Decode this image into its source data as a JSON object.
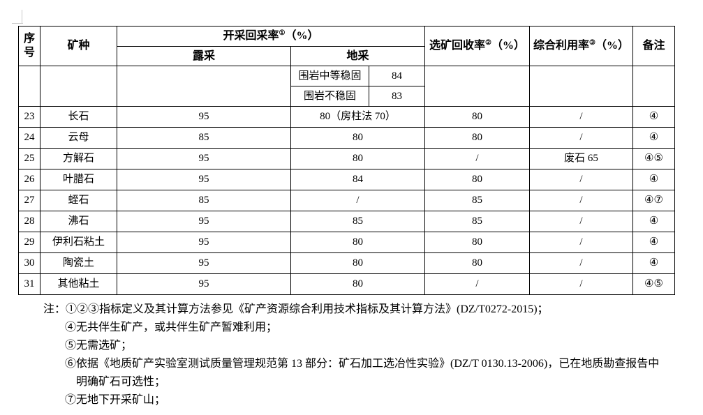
{
  "table": {
    "header": {
      "serial": "序号",
      "mineral": "矿种",
      "mining_rate": "开采回采率",
      "mining_rate_sup": "①",
      "mining_rate_unit": "（%）",
      "open_pit": "露采",
      "underground": "地采",
      "dressing_recovery": "选矿回收率",
      "dressing_recovery_sup": "②",
      "dressing_recovery_unit": "（%）",
      "comprehensive_utilization": "综合利用率",
      "comprehensive_utilization_sup": "③",
      "comprehensive_utilization_unit": "（%）",
      "remark": "备注"
    },
    "stability_rows": [
      {
        "label": "围岩中等稳固",
        "value": "84"
      },
      {
        "label": "围岩不稳固",
        "value": "83"
      }
    ],
    "rows": [
      {
        "no": "23",
        "mineral": "长石",
        "open": "95",
        "underground": "80（房柱法 70）",
        "dressing": "80",
        "comprehensive": "/",
        "remark": "④"
      },
      {
        "no": "24",
        "mineral": "云母",
        "open": "85",
        "underground": "80",
        "dressing": "80",
        "comprehensive": "/",
        "remark": "④"
      },
      {
        "no": "25",
        "mineral": "方解石",
        "open": "95",
        "underground": "80",
        "dressing": "/",
        "comprehensive": "废石 65",
        "remark": "④⑤"
      },
      {
        "no": "26",
        "mineral": "叶腊石",
        "open": "95",
        "underground": "84",
        "dressing": "80",
        "comprehensive": "/",
        "remark": "④"
      },
      {
        "no": "27",
        "mineral": "蛭石",
        "open": "85",
        "underground": "/",
        "dressing": "85",
        "comprehensive": "/",
        "remark": "④⑦"
      },
      {
        "no": "28",
        "mineral": "沸石",
        "open": "95",
        "underground": "85",
        "dressing": "85",
        "comprehensive": "/",
        "remark": "④"
      },
      {
        "no": "29",
        "mineral": "伊利石粘土",
        "open": "95",
        "underground": "80",
        "dressing": "80",
        "comprehensive": "/",
        "remark": "④"
      },
      {
        "no": "30",
        "mineral": "陶瓷土",
        "open": "95",
        "underground": "80",
        "dressing": "80",
        "comprehensive": "/",
        "remark": "④"
      },
      {
        "no": "31",
        "mineral": "其他粘土",
        "open": "95",
        "underground": "80",
        "dressing": "/",
        "comprehensive": "/",
        "remark": "④⑤"
      }
    ]
  },
  "notes": {
    "prefix": "注：",
    "lines": [
      {
        "indent": "first",
        "text": "①②③指标定义及其计算方法参见《矿产资源综合利用技术指标及其计算方法》(DZ/T0272-2015)；"
      },
      {
        "indent": "item",
        "text": "④无共伴生矿产，或共伴生矿产暂难利用；"
      },
      {
        "indent": "item",
        "text": "⑤无需选矿；"
      },
      {
        "indent": "item",
        "text": "⑥依据《地质矿产实验室测试质量管理规范第 13 部分：矿石加工选冶性实验》(DZ/T 0130.13-2006)，已在地质勘查报告中"
      },
      {
        "indent": "cont",
        "text": "明确矿石可选性；"
      },
      {
        "indent": "item",
        "text": "⑦无地下开采矿山；"
      }
    ]
  }
}
